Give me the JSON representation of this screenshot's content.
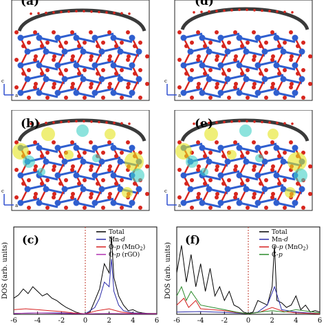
{
  "panels": {
    "a_left": {
      "label": "(a)"
    },
    "a_right": {
      "label": "(d)"
    },
    "b": {
      "label": "(b)"
    },
    "e": {
      "label": "(e)"
    },
    "c": {
      "label": "(c)"
    },
    "f": {
      "label": "(f)"
    }
  },
  "axes_glyph": {
    "vertical": "c",
    "horizontal": "a"
  },
  "colors": {
    "mn": "#2f5fcf",
    "o": "#d7261e",
    "c": "#3a3a3a",
    "iso_yellow": "#e4e51e",
    "iso_cyan": "#3fd1c6",
    "total": "#000000",
    "mn_d": "#2a2aa8",
    "o_mno2": "#d62020",
    "o_rgo": "#b030b0",
    "c_p": "#2a8a2a",
    "fermi": "#c0392b"
  },
  "chart_data": [
    {
      "type": "line",
      "panel": "(c)",
      "ylabel": "DOS (arb. units)",
      "xlim": [
        -6,
        6
      ],
      "xticks": [
        "-6",
        "-4",
        "-2",
        "0",
        "2",
        "4",
        "6"
      ],
      "legend": "top-right",
      "series": [
        {
          "name": "Total",
          "x": [
            -6,
            -5.6,
            -5.2,
            -4.8,
            -4.4,
            -4,
            -3.6,
            -3.2,
            -2.8,
            -2.4,
            -2,
            -1.6,
            -1.2,
            -0.8,
            -0.4,
            0,
            0.4,
            0.8,
            1.2,
            1.6,
            2,
            2.2,
            2.4,
            2.8,
            3.2,
            3.6,
            4,
            4.4,
            4.8,
            5.2,
            5.6,
            6
          ],
          "y": [
            0.35,
            0.42,
            0.55,
            0.45,
            0.6,
            0.5,
            0.4,
            0.45,
            0.35,
            0.3,
            0.22,
            0.15,
            0.1,
            0.05,
            0.02,
            0.01,
            0.05,
            0.3,
            0.55,
            1.1,
            0.9,
            1.7,
            0.8,
            0.4,
            0.2,
            0.08,
            0.1,
            0.05,
            0.03,
            0.02,
            0.02,
            0.02
          ]
        },
        {
          "name": "Mn-d",
          "x": [
            -6,
            -4,
            -2,
            0,
            0.8,
            1.2,
            1.6,
            2,
            2.2,
            2.4,
            2.8,
            3.2,
            4,
            6
          ],
          "y": [
            0.02,
            0.03,
            0.03,
            0.01,
            0.15,
            0.35,
            0.7,
            0.6,
            1.2,
            0.5,
            0.2,
            0.08,
            0.03,
            0.01
          ]
        },
        {
          "name": "O-p (MnO2)",
          "x": [
            -6,
            -5,
            -4,
            -3,
            -2,
            -1,
            0,
            1,
            2,
            3,
            4,
            6
          ],
          "y": [
            0.1,
            0.12,
            0.1,
            0.08,
            0.06,
            0.03,
            0.01,
            0.08,
            0.12,
            0.05,
            0.02,
            0.01
          ]
        },
        {
          "name": "O-p (rGO)",
          "x": [
            -6,
            -4,
            -2,
            0,
            2,
            4,
            6
          ],
          "y": [
            0.02,
            0.03,
            0.02,
            0.01,
            0.02,
            0.01,
            0.01
          ]
        }
      ],
      "legend_labels": {
        "total": "Total",
        "mn_prefix": "Mn-",
        "mn_sub": "d",
        "o_mno2_prefix": "O-",
        "o_mno2_italic": "p",
        "o_mno2_rest": " (MnO",
        "o_mno2_sub": "2",
        "o_mno2_end": ")",
        "o_rgo_prefix": "O-",
        "o_rgo_italic": "p",
        "o_rgo_rest": " (rGO)"
      }
    },
    {
      "type": "line",
      "panel": "(f)",
      "ylabel": "DOS (arb. units)",
      "xlim": [
        -6,
        6
      ],
      "xticks": [
        "-6",
        "-4",
        "-2",
        "0",
        "2",
        "4",
        "6"
      ],
      "legend": "top-right",
      "series": [
        {
          "name": "Total",
          "x": [
            -6,
            -5.6,
            -5.2,
            -4.8,
            -4.4,
            -4,
            -3.6,
            -3.2,
            -2.8,
            -2.4,
            -2,
            -1.6,
            -1.2,
            -0.8,
            -0.4,
            0,
            0.4,
            0.8,
            1.2,
            1.6,
            2,
            2.2,
            2.4,
            2.8,
            3.2,
            3.6,
            4,
            4.4,
            4.8,
            5.2,
            5.6,
            6
          ],
          "y": [
            0.9,
            1.5,
            0.7,
            1.3,
            0.6,
            1.1,
            0.5,
            1.0,
            0.4,
            0.6,
            0.3,
            0.5,
            0.2,
            0.15,
            0.05,
            0.02,
            0.05,
            0.3,
            0.25,
            0.2,
            0.6,
            1.5,
            0.3,
            0.25,
            0.15,
            0.2,
            0.4,
            0.1,
            0.2,
            0.05,
            0.08,
            0.05
          ]
        },
        {
          "name": "Mn-d",
          "x": [
            -6,
            -4,
            -2,
            0,
            0.8,
            1.6,
            2.2,
            2.8,
            4,
            6
          ],
          "y": [
            0.05,
            0.06,
            0.04,
            0.01,
            0.05,
            0.2,
            0.6,
            0.1,
            0.05,
            0.01
          ]
        },
        {
          "name": "O-p (MnO2)",
          "x": [
            -6,
            -5.4,
            -5,
            -4.4,
            -4,
            -3,
            -2,
            -1,
            0,
            1,
            2,
            3,
            4,
            6
          ],
          "y": [
            0.2,
            0.35,
            0.15,
            0.3,
            0.12,
            0.1,
            0.08,
            0.04,
            0.01,
            0.05,
            0.15,
            0.06,
            0.03,
            0.01
          ]
        },
        {
          "name": "C-p",
          "x": [
            -6,
            -5.6,
            -5.2,
            -4.8,
            -4,
            -3,
            -2,
            -1,
            0,
            1,
            2,
            3,
            4,
            6
          ],
          "y": [
            0.4,
            0.6,
            0.3,
            0.5,
            0.2,
            0.15,
            0.1,
            0.05,
            0.01,
            0.05,
            0.08,
            0.05,
            0.1,
            0.03
          ]
        }
      ],
      "legend_labels": {
        "total": "Total",
        "mn_prefix": "Mn-",
        "mn_sub": "d",
        "o_mno2_prefix": "O-",
        "o_mno2_italic": "p",
        "o_mno2_rest": " (MnO",
        "o_mno2_sub": "2",
        "o_mno2_end": ")",
        "c_prefix": "C-",
        "c_italic": "p"
      }
    }
  ]
}
